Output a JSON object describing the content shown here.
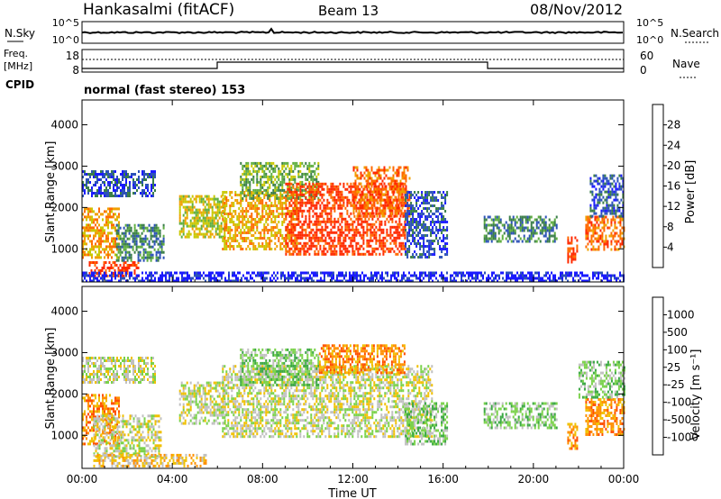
{
  "header": {
    "station": "Hankasalmi (fitACF)",
    "beam": "Beam 13",
    "date": "08/Nov/2012"
  },
  "top_panels": {
    "nsky_label": "N.Sky",
    "nsearch_label": "N.Search",
    "freq_label_1": "Freq.",
    "freq_label_2": "[MHz]",
    "nave_label": "Nave",
    "cpid_label": "CPID",
    "cpid_value": "normal (fast stereo) 153",
    "noise_ticks": [
      "10^5",
      "10^0"
    ],
    "freq_ticks": [
      "18",
      "8"
    ],
    "nave_ticks": [
      "60",
      "0"
    ]
  },
  "chart_data": [
    {
      "type": "heatmap",
      "name": "power-panel",
      "ylabel": "Slant Range [km]",
      "xlabel": "",
      "x_ticks": [
        "00:00",
        "04:00",
        "08:00",
        "12:00",
        "16:00",
        "20:00",
        "00:00"
      ],
      "y_ticks": [
        1000,
        2000,
        3000,
        4000
      ],
      "ylim": [
        200,
        4600
      ],
      "xlim_hours": [
        0,
        24
      ],
      "colorbar": {
        "label": "Power [dB]",
        "ticks": [
          "4",
          "8",
          "12",
          "16",
          "20",
          "24",
          "28"
        ],
        "colors": [
          "#1a1aff",
          "#2c52b8",
          "#3a7e48",
          "#5fae3f",
          "#c8c800",
          "#f0a000",
          "#ff6a00",
          "#ff2a00"
        ]
      },
      "regions": [
        {
          "t0": 0.0,
          "t1": 1.6,
          "r0": 800,
          "r1": 2000,
          "level": 5
        },
        {
          "t0": 0.0,
          "t1": 3.2,
          "r0": 2300,
          "r1": 2900,
          "level": 1
        },
        {
          "t0": 0.3,
          "t1": 2.5,
          "r0": 350,
          "r1": 700,
          "level": 7
        },
        {
          "t0": 1.5,
          "t1": 3.6,
          "r0": 700,
          "r1": 1600,
          "level": 2
        },
        {
          "t0": 4.3,
          "t1": 6.3,
          "r0": 1300,
          "r1": 2300,
          "level": 4
        },
        {
          "t0": 6.2,
          "t1": 9.5,
          "r0": 1000,
          "r1": 2400,
          "level": 5
        },
        {
          "t0": 7.0,
          "t1": 10.5,
          "r0": 2200,
          "r1": 3100,
          "level": 3
        },
        {
          "t0": 9.0,
          "t1": 14.3,
          "r0": 900,
          "r1": 2600,
          "level": 7
        },
        {
          "t0": 12.0,
          "t1": 14.5,
          "r0": 1800,
          "r1": 3000,
          "level": 6
        },
        {
          "t0": 14.3,
          "t1": 16.2,
          "r0": 800,
          "r1": 2400,
          "level": 1
        },
        {
          "t0": 17.8,
          "t1": 21.0,
          "r0": 1200,
          "r1": 1800,
          "level": 2
        },
        {
          "t0": 21.5,
          "t1": 21.9,
          "r0": 700,
          "r1": 1300,
          "level": 7
        },
        {
          "t0": 22.3,
          "t1": 24.0,
          "r0": 1000,
          "r1": 1800,
          "level": 6
        },
        {
          "t0": 22.5,
          "t1": 24.0,
          "r0": 1800,
          "r1": 2800,
          "level": 1
        },
        {
          "t0": 0.0,
          "t1": 24.0,
          "r0": 250,
          "r1": 450,
          "level": 0
        }
      ]
    },
    {
      "type": "heatmap",
      "name": "velocity-panel",
      "ylabel": "Slant Range [km]",
      "xlabel": "Time UT",
      "x_ticks": [
        "00:00",
        "04:00",
        "08:00",
        "12:00",
        "16:00",
        "20:00",
        "00:00"
      ],
      "y_ticks": [
        1000,
        2000,
        3000,
        4000
      ],
      "ylim": [
        200,
        4600
      ],
      "xlim_hours": [
        0,
        24
      ],
      "colorbar": {
        "label": "Velocity [m s^-1]",
        "ticks": [
          "1000",
          "500",
          "100",
          "25",
          "-25",
          "-100",
          "-500",
          "-1000"
        ],
        "colors": [
          "#1a4fb0",
          "#2e7a3a",
          "#3aa843",
          "#7ad24a",
          "#c0c0c0",
          "#f0c000",
          "#ff9000",
          "#ff5000",
          "#ff1a00"
        ]
      },
      "regions": [
        {
          "t0": 0.0,
          "t1": 1.6,
          "r0": 800,
          "r1": 2000,
          "level": 6
        },
        {
          "t0": 0.0,
          "t1": 3.2,
          "r0": 2300,
          "r1": 2900,
          "level": 4
        },
        {
          "t0": 0.5,
          "t1": 3.5,
          "r0": 500,
          "r1": 1500,
          "level": 4
        },
        {
          "t0": 0.5,
          "t1": 5.5,
          "r0": 250,
          "r1": 550,
          "level": 5
        },
        {
          "t0": 4.3,
          "t1": 6.3,
          "r0": 1300,
          "r1": 2300,
          "level": 4
        },
        {
          "t0": 6.2,
          "t1": 15.5,
          "r0": 1000,
          "r1": 2700,
          "level": 4
        },
        {
          "t0": 7.0,
          "t1": 10.5,
          "r0": 2200,
          "r1": 3100,
          "level": 3
        },
        {
          "t0": 10.5,
          "t1": 14.3,
          "r0": 2500,
          "r1": 3200,
          "level": 6
        },
        {
          "t0": 14.3,
          "t1": 16.2,
          "r0": 800,
          "r1": 1800,
          "level": 3
        },
        {
          "t0": 17.8,
          "t1": 21.0,
          "r0": 1200,
          "r1": 1800,
          "level": 3
        },
        {
          "t0": 21.5,
          "t1": 21.9,
          "r0": 700,
          "r1": 1300,
          "level": 6
        },
        {
          "t0": 22.3,
          "t1": 24.0,
          "r0": 1000,
          "r1": 1900,
          "level": 6
        },
        {
          "t0": 22.0,
          "t1": 24.0,
          "r0": 1900,
          "r1": 2800,
          "level": 3
        }
      ]
    }
  ],
  "colors": {
    "frame": "#000000",
    "background": "#ffffff"
  }
}
